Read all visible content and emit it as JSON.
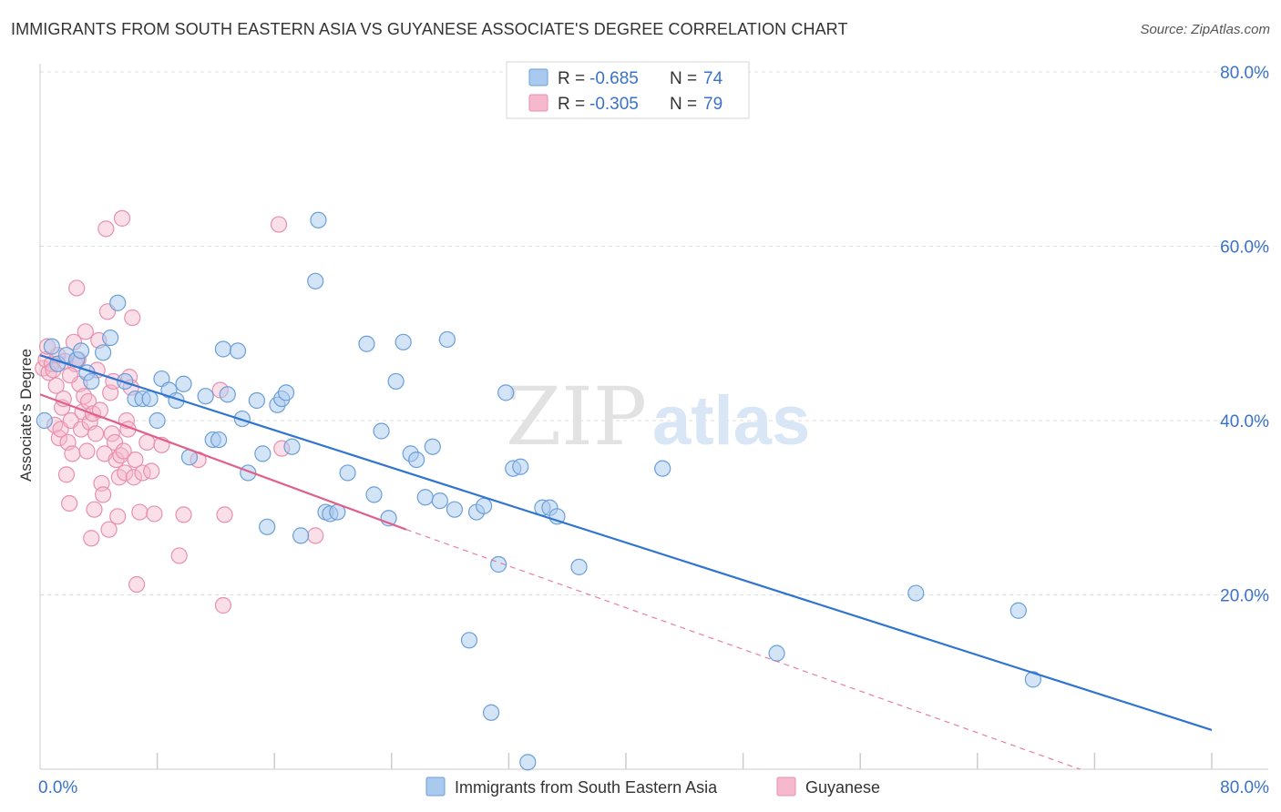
{
  "title": "IMMIGRANTS FROM SOUTH EASTERN ASIA VS GUYANESE ASSOCIATE'S DEGREE CORRELATION CHART",
  "source": "Source: ZipAtlas.com",
  "watermark": {
    "zip": "ZIP",
    "atlas": "atlas"
  },
  "colors": {
    "blue_fill": "#a9c9ef",
    "blue_stroke": "#6a9fd8",
    "blue_line": "#2f74d0",
    "pink_fill": "#f5b8cc",
    "pink_stroke": "#e890ad",
    "pink_line": "#e0608a",
    "value_text": "#3a72c8",
    "grid": "#dddddd"
  },
  "legend": {
    "items": [
      {
        "r_label": "R =",
        "r_value": "-0.685",
        "n_label": "N =",
        "n_value": "74",
        "color": "blue"
      },
      {
        "r_label": "R =",
        "r_value": "-0.305",
        "n_label": "N =",
        "n_value": "79",
        "color": "pink"
      }
    ]
  },
  "chart_data": {
    "type": "scatter",
    "ylabel": "Associate's Degree",
    "xlim": [
      0,
      80
    ],
    "ylim": [
      0,
      80
    ],
    "x_tick_labels": [
      "0.0%",
      "80.0%"
    ],
    "y_tick_values": [
      20,
      40,
      60,
      80
    ],
    "y_tick_labels": [
      "20.0%",
      "40.0%",
      "60.0%",
      "80.0%"
    ],
    "grid": "horizontal dashed",
    "legend_position": "top-center",
    "series": [
      {
        "name": "Immigrants from South Eastern Asia",
        "color": "blue",
        "trend": {
          "x": [
            0,
            80
          ],
          "y": [
            47.5,
            4.5
          ]
        },
        "points": [
          [
            0.3,
            40.0
          ],
          [
            0.8,
            48.5
          ],
          [
            1.2,
            46.5
          ],
          [
            1.8,
            47.5
          ],
          [
            2.5,
            47.0
          ],
          [
            2.8,
            48.0
          ],
          [
            3.2,
            45.5
          ],
          [
            3.5,
            44.5
          ],
          [
            4.3,
            47.8
          ],
          [
            4.8,
            49.5
          ],
          [
            5.3,
            53.5
          ],
          [
            5.8,
            44.5
          ],
          [
            6.5,
            42.5
          ],
          [
            7.0,
            42.5
          ],
          [
            7.5,
            42.5
          ],
          [
            8.0,
            40.0
          ],
          [
            8.3,
            44.8
          ],
          [
            8.8,
            43.5
          ],
          [
            9.3,
            42.3
          ],
          [
            9.8,
            44.2
          ],
          [
            10.2,
            35.8
          ],
          [
            11.3,
            42.8
          ],
          [
            11.8,
            37.8
          ],
          [
            12.2,
            37.8
          ],
          [
            12.5,
            48.2
          ],
          [
            12.8,
            43.0
          ],
          [
            13.5,
            48.0
          ],
          [
            13.8,
            40.2
          ],
          [
            14.2,
            34.0
          ],
          [
            14.8,
            42.3
          ],
          [
            15.2,
            36.2
          ],
          [
            15.5,
            27.8
          ],
          [
            16.2,
            41.8
          ],
          [
            16.5,
            42.5
          ],
          [
            16.8,
            43.2
          ],
          [
            17.2,
            37.0
          ],
          [
            17.8,
            26.8
          ],
          [
            18.8,
            56.0
          ],
          [
            19.0,
            63.0
          ],
          [
            19.5,
            29.5
          ],
          [
            19.8,
            29.3
          ],
          [
            20.3,
            29.5
          ],
          [
            21.0,
            34.0
          ],
          [
            22.3,
            48.8
          ],
          [
            22.8,
            31.5
          ],
          [
            23.3,
            38.8
          ],
          [
            23.8,
            28.8
          ],
          [
            24.3,
            44.5
          ],
          [
            24.8,
            49.0
          ],
          [
            25.3,
            36.2
          ],
          [
            25.7,
            35.5
          ],
          [
            26.3,
            31.2
          ],
          [
            26.8,
            37.0
          ],
          [
            27.3,
            30.8
          ],
          [
            27.8,
            49.3
          ],
          [
            28.3,
            29.8
          ],
          [
            29.3,
            14.8
          ],
          [
            29.8,
            29.5
          ],
          [
            30.3,
            30.2
          ],
          [
            30.8,
            6.5
          ],
          [
            31.3,
            23.5
          ],
          [
            31.8,
            43.2
          ],
          [
            32.3,
            34.5
          ],
          [
            32.8,
            34.7
          ],
          [
            33.3,
            0.8
          ],
          [
            34.3,
            30.0
          ],
          [
            34.8,
            30.0
          ],
          [
            35.3,
            29.0
          ],
          [
            36.8,
            23.2
          ],
          [
            42.5,
            34.5
          ],
          [
            50.3,
            13.3
          ],
          [
            59.8,
            20.2
          ],
          [
            66.8,
            18.2
          ],
          [
            67.8,
            10.3
          ]
        ]
      },
      {
        "name": "Guyanese",
        "color": "pink",
        "trend": {
          "x": [
            0,
            25
          ],
          "y": [
            43.0,
            27.5
          ]
        },
        "trend_dashed": {
          "x": [
            25,
            71
          ],
          "y": [
            27.5,
            0
          ]
        },
        "points": [
          [
            0.2,
            46.0
          ],
          [
            0.4,
            47.0
          ],
          [
            0.6,
            45.5
          ],
          [
            0.8,
            46.5
          ],
          [
            1.0,
            39.5
          ],
          [
            1.1,
            44.0
          ],
          [
            1.2,
            47.5
          ],
          [
            1.3,
            38.0
          ],
          [
            1.4,
            39.0
          ],
          [
            1.5,
            41.5
          ],
          [
            1.6,
            42.5
          ],
          [
            1.8,
            33.8
          ],
          [
            1.9,
            37.5
          ],
          [
            2.0,
            30.5
          ],
          [
            2.1,
            40.0
          ],
          [
            2.2,
            36.2
          ],
          [
            2.3,
            49.0
          ],
          [
            2.4,
            46.5
          ],
          [
            2.5,
            55.2
          ],
          [
            2.6,
            47.0
          ],
          [
            2.7,
            44.2
          ],
          [
            2.8,
            39.0
          ],
          [
            2.9,
            41.0
          ],
          [
            3.0,
            42.8
          ],
          [
            3.1,
            50.2
          ],
          [
            3.2,
            36.5
          ],
          [
            3.3,
            42.2
          ],
          [
            3.4,
            39.8
          ],
          [
            3.5,
            26.5
          ],
          [
            3.6,
            40.8
          ],
          [
            3.7,
            29.8
          ],
          [
            3.8,
            38.5
          ],
          [
            3.9,
            45.8
          ],
          [
            4.0,
            49.2
          ],
          [
            4.1,
            41.2
          ],
          [
            4.2,
            32.8
          ],
          [
            4.3,
            31.5
          ],
          [
            4.4,
            36.2
          ],
          [
            4.5,
            62.0
          ],
          [
            4.6,
            52.5
          ],
          [
            4.7,
            27.5
          ],
          [
            4.8,
            43.2
          ],
          [
            4.9,
            38.5
          ],
          [
            5.0,
            44.5
          ],
          [
            5.1,
            37.5
          ],
          [
            5.2,
            35.5
          ],
          [
            5.3,
            29.0
          ],
          [
            5.4,
            33.5
          ],
          [
            5.5,
            36.0
          ],
          [
            5.6,
            63.2
          ],
          [
            5.7,
            36.5
          ],
          [
            5.8,
            34.0
          ],
          [
            5.9,
            40.0
          ],
          [
            6.0,
            39.0
          ],
          [
            6.1,
            45.0
          ],
          [
            6.2,
            43.8
          ],
          [
            6.3,
            51.8
          ],
          [
            6.4,
            33.5
          ],
          [
            6.5,
            35.5
          ],
          [
            6.6,
            21.2
          ],
          [
            6.8,
            29.5
          ],
          [
            7.0,
            34.0
          ],
          [
            7.3,
            37.5
          ],
          [
            7.6,
            34.2
          ],
          [
            7.8,
            29.3
          ],
          [
            8.3,
            37.2
          ],
          [
            9.5,
            24.5
          ],
          [
            9.8,
            29.2
          ],
          [
            10.8,
            35.5
          ],
          [
            12.3,
            43.5
          ],
          [
            12.5,
            18.8
          ],
          [
            12.6,
            29.2
          ],
          [
            16.3,
            62.5
          ],
          [
            16.5,
            36.8
          ],
          [
            18.8,
            26.8
          ],
          [
            0.5,
            48.5
          ],
          [
            0.9,
            45.8
          ],
          [
            1.7,
            46.8
          ],
          [
            2.05,
            45.2
          ]
        ]
      }
    ]
  }
}
